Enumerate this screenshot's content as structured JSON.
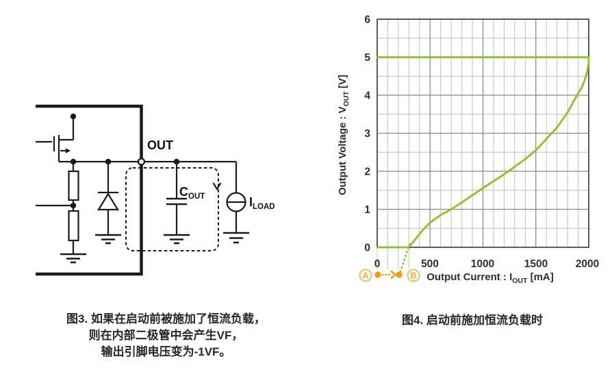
{
  "figure3": {
    "caption_lines": [
      "图3. 如果在启动前被施加了恒流负载，",
      "则在内部二极管中会产生VF，",
      "输出引脚电压变为-1VF。"
    ],
    "labels": {
      "out_pin": "OUT",
      "cout_main": "C",
      "cout_sub": "OUT",
      "iload_main": "I",
      "iload_sub": "LOAD"
    }
  },
  "figure4": {
    "caption": "图4. 启动前施加恒流负载时",
    "chart_data": {
      "type": "line",
      "title": "",
      "xlabel": {
        "pre": "Output Current : I",
        "sub": "OUT",
        "post": " [mA]"
      },
      "ylabel": {
        "pre": "Output Voltage : V",
        "sub": "OUT",
        "post": " [V]"
      },
      "xlim": [
        0,
        2000
      ],
      "ylim": [
        0,
        6
      ],
      "x_ticks": [
        0,
        500,
        1000,
        1500,
        2000
      ],
      "y_ticks": [
        0,
        1,
        2,
        3,
        4,
        5,
        6
      ],
      "x_minor_step": 100,
      "y_minor_step": 0.5,
      "grid": "on",
      "legend": "none",
      "below_axis_gridline_x": [
        0,
        100,
        200,
        300
      ],
      "series": [
        {
          "name": "output-voltage-vs-current",
          "style": "solid",
          "color": "#8cc31e",
          "points": [
            [
              0,
              5
            ],
            [
              2000,
              5
            ],
            [
              2000,
              4.85
            ],
            [
              1985,
              4.62
            ],
            [
              1960,
              4.38
            ],
            [
              1930,
              4.18
            ],
            [
              1900,
              4.05
            ],
            [
              1850,
              3.8
            ],
            [
              1800,
              3.55
            ],
            [
              1700,
              3.15
            ],
            [
              1600,
              2.85
            ],
            [
              1500,
              2.55
            ],
            [
              1400,
              2.32
            ],
            [
              1300,
              2.12
            ],
            [
              1200,
              1.92
            ],
            [
              1100,
              1.74
            ],
            [
              1000,
              1.56
            ],
            [
              900,
              1.37
            ],
            [
              800,
              1.18
            ],
            [
              700,
              1.0
            ],
            [
              600,
              0.85
            ],
            [
              500,
              0.65
            ],
            [
              430,
              0.45
            ],
            [
              380,
              0.28
            ],
            [
              330,
              0.1
            ],
            [
              300,
              0.02
            ],
            [
              290,
              0
            ],
            [
              0,
              0
            ]
          ]
        },
        {
          "name": "startup-transition",
          "style": "dotted",
          "color": "#8cc31e",
          "points": [
            [
              207,
              -0.74
            ],
            [
              240,
              -0.48
            ],
            [
              270,
              -0.22
            ],
            [
              295,
              0.0
            ],
            [
              315,
              0.14
            ]
          ]
        }
      ],
      "annotations": {
        "point_a_label": "A",
        "point_b_label": "B"
      },
      "colors": {
        "curve": "#8cc31e",
        "annotation_strong": "#f59b0a",
        "annotation_light": "#f8bd62"
      }
    }
  }
}
